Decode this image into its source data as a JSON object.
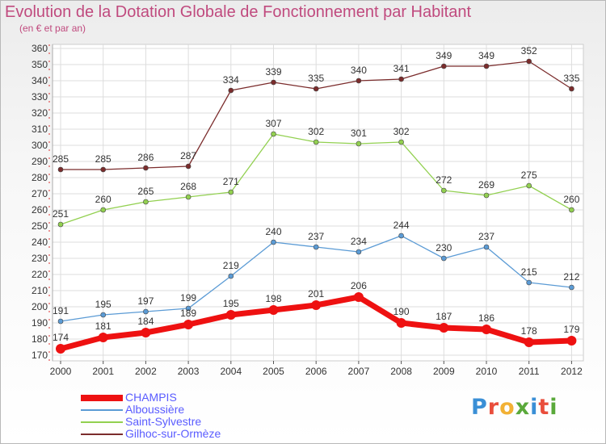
{
  "title": "Evolution de la Dotation Globale de Fonctionnement par Habitant",
  "subtitle": "(en € et par an)",
  "brand": {
    "text": "Proxiti",
    "colors": [
      "#3a8fd6",
      "#e94e3c",
      "#f2b134",
      "#5aa93a",
      "#3a8fd6",
      "#e94e3c",
      "#5aa93a"
    ]
  },
  "chart_data": {
    "type": "line",
    "title": "Evolution de la Dotation Globale de Fonctionnement par Habitant",
    "subtitle": "(en € et par an)",
    "x": [
      "2000",
      "2001",
      "2002",
      "2003",
      "2004",
      "2005",
      "2006",
      "2007",
      "2008",
      "2009",
      "2010",
      "2011",
      "2012"
    ],
    "ylim": [
      170,
      360
    ],
    "yticks": [
      170,
      180,
      190,
      200,
      210,
      220,
      230,
      240,
      250,
      260,
      270,
      280,
      290,
      300,
      310,
      320,
      330,
      340,
      350,
      360
    ],
    "grid": true,
    "legend_position": "bottom-left",
    "series": [
      {
        "name": "CHAMPIS",
        "color": "#ee1111",
        "values": [
          174,
          181,
          184,
          189,
          195,
          198,
          201,
          206,
          190,
          187,
          186,
          178,
          179
        ]
      },
      {
        "name": "Alboussière",
        "color": "#5b9bd5",
        "values": [
          191,
          195,
          197,
          199,
          219,
          240,
          237,
          234,
          244,
          230,
          237,
          215,
          212
        ]
      },
      {
        "name": "Saint-Sylvestre",
        "color": "#92d050",
        "values": [
          251,
          260,
          265,
          268,
          271,
          307,
          302,
          301,
          302,
          272,
          269,
          275,
          260
        ]
      },
      {
        "name": "Gilhoc-sur-Ormèze",
        "color": "#7b2c2c",
        "values": [
          285,
          285,
          286,
          287,
          334,
          339,
          335,
          340,
          341,
          349,
          349,
          352,
          335
        ]
      }
    ]
  }
}
